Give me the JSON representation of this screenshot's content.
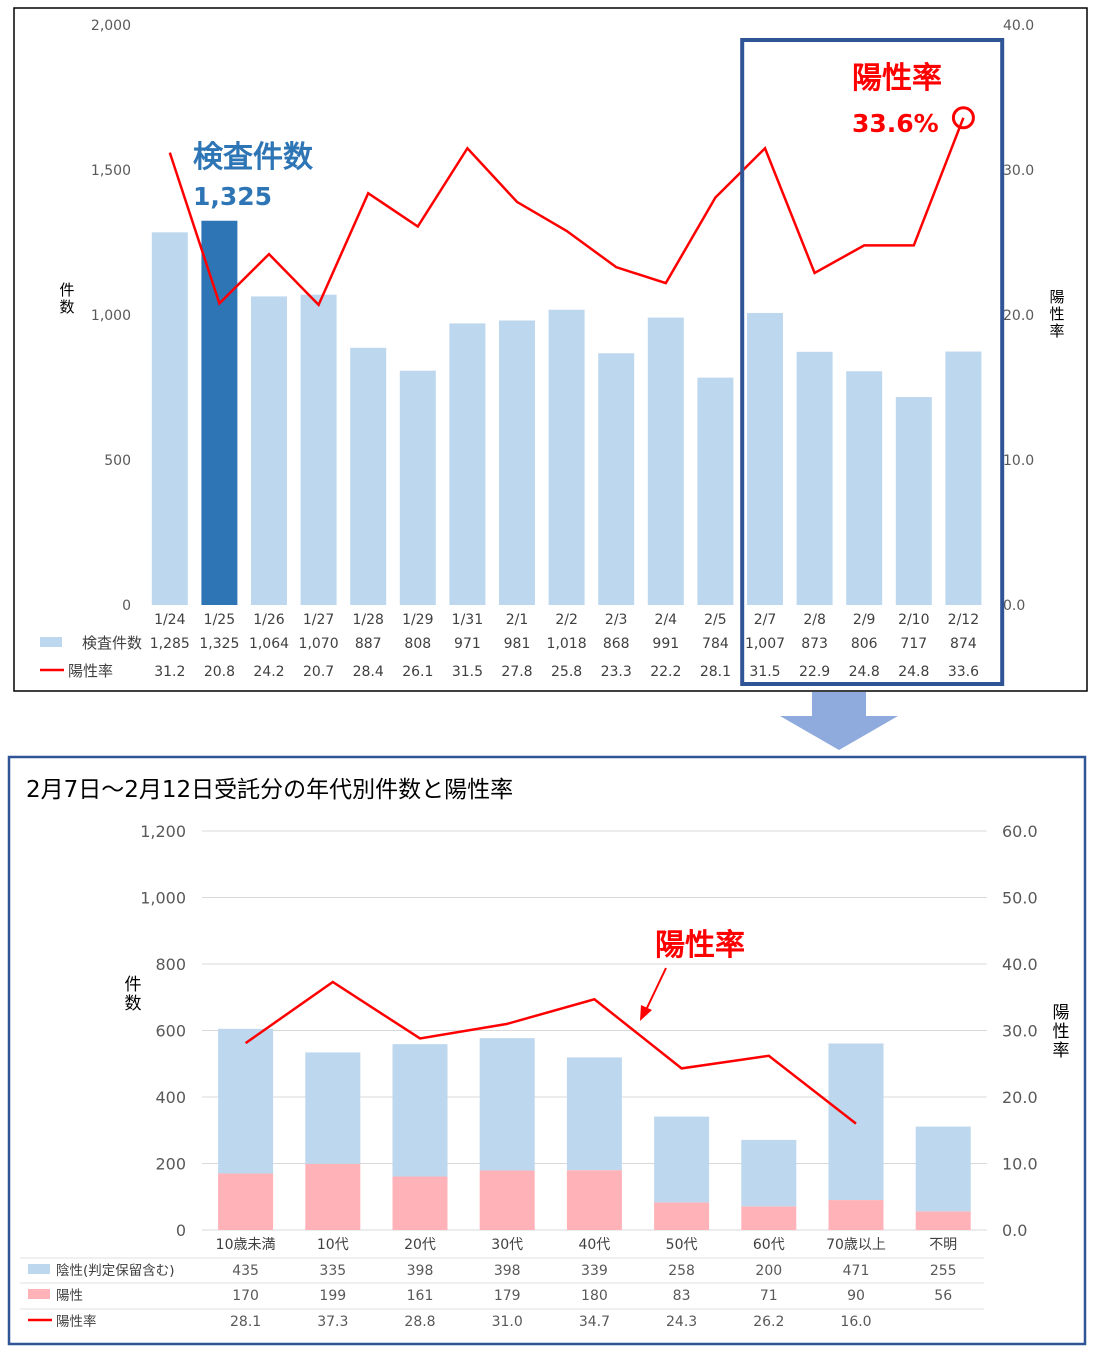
{
  "chart_data": [
    {
      "type": "bar",
      "categories": [
        "1/24",
        "1/25",
        "1/26",
        "1/27",
        "1/28",
        "1/29",
        "1/31",
        "2/1",
        "2/2",
        "2/3",
        "2/4",
        "2/5",
        "2/7",
        "2/8",
        "2/9",
        "2/10",
        "2/12"
      ],
      "series": [
        {
          "name": "検査件数",
          "type": "bar",
          "axis": "left",
          "values": [
            1285,
            1325,
            1064,
            1070,
            887,
            808,
            971,
            981,
            1018,
            868,
            991,
            784,
            1007,
            873,
            806,
            717,
            874
          ],
          "labels": [
            "1,285",
            "1,325",
            "1,064",
            "1,070",
            "887",
            "808",
            "971",
            "981",
            "1,018",
            "868",
            "991",
            "784",
            "1,007",
            "873",
            "806",
            "717",
            "874"
          ]
        },
        {
          "name": "陽性率",
          "type": "line",
          "axis": "right",
          "values": [
            31.2,
            20.8,
            24.2,
            20.7,
            28.4,
            26.1,
            31.5,
            27.8,
            25.8,
            23.3,
            22.2,
            28.1,
            31.5,
            22.9,
            24.8,
            24.8,
            33.6
          ],
          "labels": [
            "31.2",
            "20.8",
            "24.2",
            "20.7",
            "28.4",
            "26.1",
            "31.5",
            "27.8",
            "25.8",
            "23.3",
            "22.2",
            "28.1",
            "31.5",
            "22.9",
            "24.8",
            "24.8",
            "33.6"
          ]
        }
      ],
      "ylabel": "件数",
      "y2label": "陽性率",
      "ylim": [
        0,
        2000
      ],
      "y2lim": [
        0,
        40
      ],
      "yticks": [
        "0",
        "500",
        "1,000",
        "1,500",
        "2,000"
      ],
      "y2ticks": [
        "0.0",
        "10.0",
        "20.0",
        "30.0",
        "40.0"
      ],
      "highlight_index": 1,
      "highlight_range": [
        12,
        16
      ],
      "annotations": [
        {
          "text": "検査件数",
          "value": "1,325",
          "index": 1
        },
        {
          "text": "陽性率",
          "value": "33.6%",
          "index": 16
        }
      ],
      "grid": false,
      "legend": "table-bottom"
    },
    {
      "type": "bar",
      "title": "2月7日～2月12日受託分の年代別件数と陽性率",
      "categories": [
        "10歳未満",
        "10代",
        "20代",
        "30代",
        "40代",
        "50代",
        "60代",
        "70歳以上",
        "不明"
      ],
      "series": [
        {
          "name": "陰性(判定保留含む)",
          "type": "bar-stacked",
          "axis": "left",
          "values": [
            435,
            335,
            398,
            398,
            339,
            258,
            200,
            471,
            255
          ],
          "labels": [
            "435",
            "335",
            "398",
            "398",
            "339",
            "258",
            "200",
            "471",
            "255"
          ]
        },
        {
          "name": "陽性",
          "type": "bar-stacked",
          "axis": "left",
          "values": [
            170,
            199,
            161,
            179,
            180,
            83,
            71,
            90,
            56
          ],
          "labels": [
            "170",
            "199",
            "161",
            "179",
            "180",
            "83",
            "71",
            "90",
            "56"
          ]
        },
        {
          "name": "陽性率",
          "type": "line",
          "axis": "right",
          "values": [
            28.1,
            37.3,
            28.8,
            31.0,
            34.7,
            24.3,
            26.2,
            16.0,
            null
          ],
          "labels": [
            "28.1",
            "37.3",
            "28.8",
            "31.0",
            "34.7",
            "24.3",
            "26.2",
            "16.0",
            ""
          ]
        }
      ],
      "ylabel": "件数",
      "y2label": "陽性率",
      "ylim": [
        0,
        1200
      ],
      "y2lim": [
        0,
        60
      ],
      "yticks": [
        "0",
        "200",
        "400",
        "600",
        "800",
        "1,000",
        "1,200"
      ],
      "y2ticks": [
        "0.0",
        "10.0",
        "20.0",
        "30.0",
        "40.0",
        "50.0",
        "60.0"
      ],
      "annotations": [
        {
          "text": "陽性率"
        }
      ],
      "grid": true,
      "legend": "table-bottom"
    }
  ],
  "colors": {
    "bar_light": "#bdd7ee",
    "bar_highlight": "#2e75b6",
    "line_red": "#ff0000",
    "positive_pink": "#ffb3b8",
    "frame_blue": "#2f5597",
    "annot_blue": "#2e75b6",
    "arrow_blue": "#8faadc"
  }
}
